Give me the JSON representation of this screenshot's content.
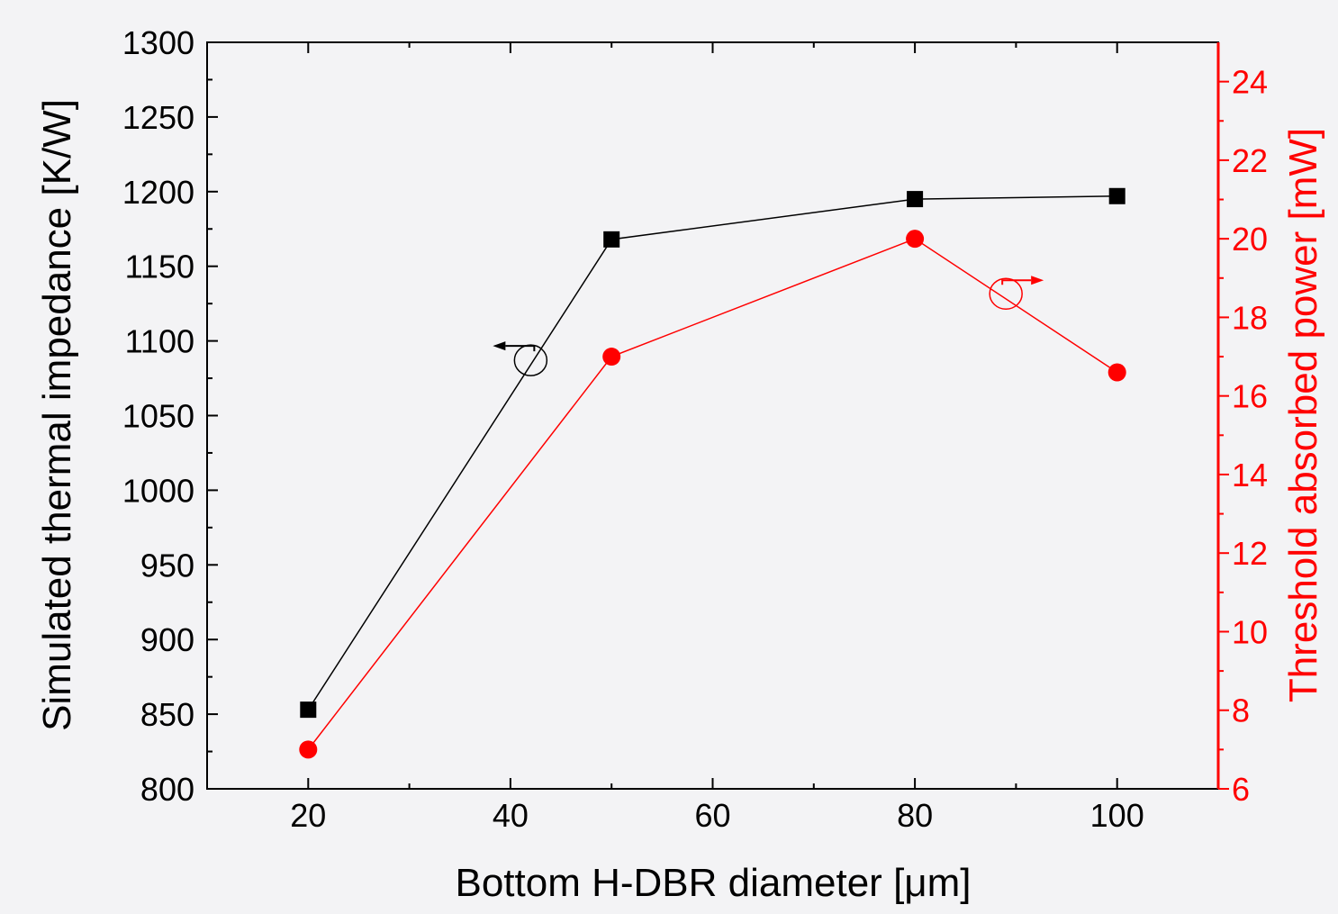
{
  "chart_data": {
    "type": "line",
    "xlabel": "Bottom H-DBR diameter [μm]",
    "ylabel_left": "Simulated thermal impedance [K/W]",
    "ylabel_right": "Threshold absorbed power [mW]",
    "xlim": [
      10,
      110
    ],
    "ylim_left": [
      800,
      1300
    ],
    "ylim_right": [
      6,
      25
    ],
    "x_ticks": [
      20,
      40,
      60,
      80,
      100
    ],
    "y_left_ticks": [
      800,
      850,
      900,
      950,
      1000,
      1050,
      1100,
      1150,
      1200,
      1250,
      1300
    ],
    "y_right_ticks": [
      6,
      8,
      10,
      12,
      14,
      16,
      18,
      20,
      22,
      24
    ],
    "grid": false,
    "series": [
      {
        "axis": "left",
        "color": "#000000",
        "marker": "square",
        "x": [
          20,
          50,
          80,
          100
        ],
        "values": [
          853,
          1168,
          1195,
          1197
        ]
      },
      {
        "axis": "right",
        "color": "#ff0000",
        "marker": "circle",
        "x": [
          20,
          50,
          80,
          100
        ],
        "values": [
          7.0,
          17.0,
          20.0,
          16.6
        ]
      }
    ],
    "annotations": [
      {
        "type": "axis-indicator",
        "series": 0,
        "arrow": "left",
        "at": [
          42,
          1087
        ]
      },
      {
        "type": "axis-indicator",
        "series": 1,
        "arrow": "right",
        "at": [
          89,
          18.6
        ]
      }
    ]
  }
}
